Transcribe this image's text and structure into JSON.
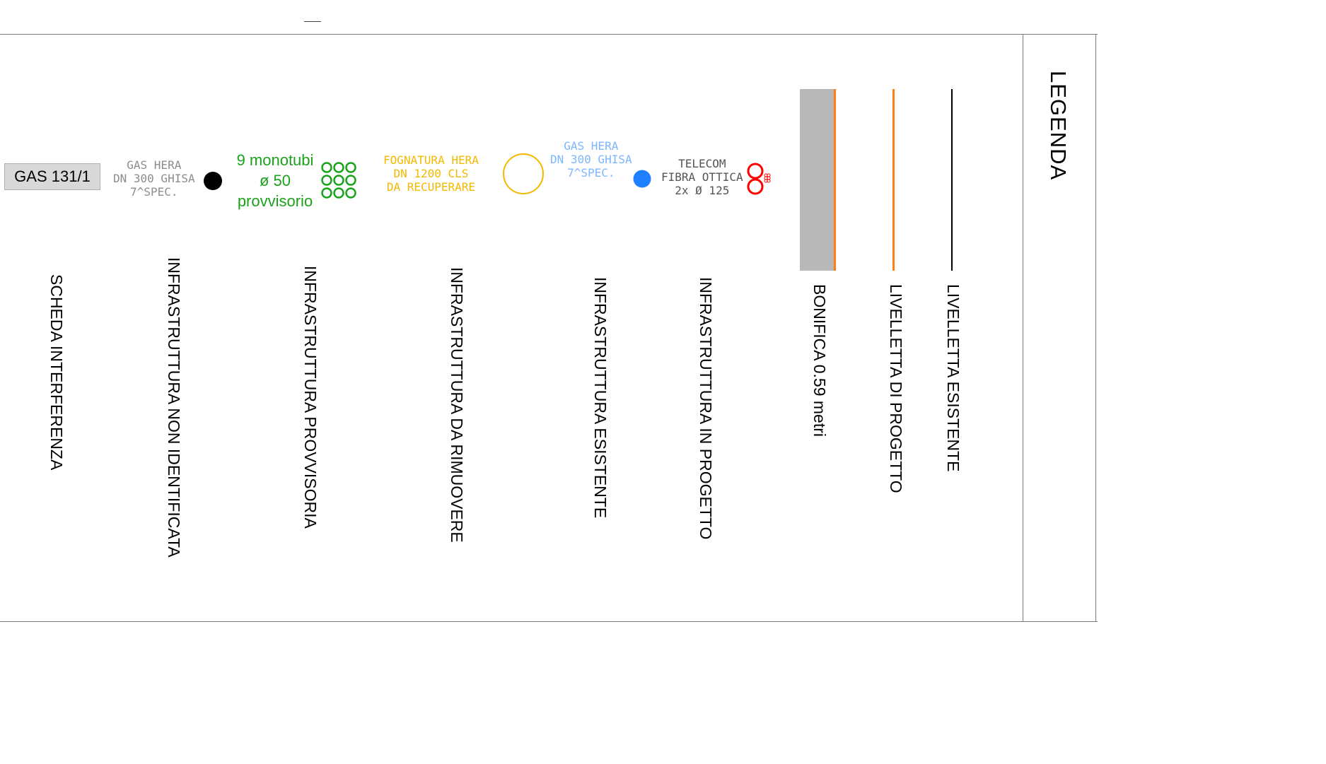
{
  "legend": {
    "title": "LEGENDA",
    "items": [
      {
        "label": "LIVELLETTA  ESISTENTE",
        "color": "#000000"
      },
      {
        "label": "LIVELLETTA  DI PROGETTO",
        "color": "#ff7f0e"
      },
      {
        "label": "BONIFICA 0.59 metri",
        "fill": "#b8b8b8",
        "edge": "#ff7f0e"
      },
      {
        "label": "INFRASTRUTTURA IN PROGETTO",
        "color": "#ff0000"
      },
      {
        "label": "INFRASTRUTTURA ESISTENTE",
        "color": "#1e7fff"
      },
      {
        "label": "INFRASTRUTTURA DA RIMUOVERE",
        "color": "#f5b800"
      },
      {
        "label": "INFRASTRUTTURA PROVVISORIA",
        "color": "#1aa31a"
      },
      {
        "label": "INFRASTRUTTURA NON IDENTIFICATA",
        "color": "#000000"
      },
      {
        "label": "SCHEDA INTERFERENZA"
      }
    ]
  },
  "samples": {
    "telecom": [
      "TELECOM",
      "FIBRA  OTTICA",
      "2x  Ø  125"
    ],
    "gas_existing": [
      "GAS  HERA",
      "DN  300  GHISA",
      "7^SPEC."
    ],
    "fognatura": [
      "FOGNATURA  HERA",
      "DN  1200  CLS",
      "DA  RECUPERARE"
    ],
    "provvisoria": [
      "9 monotubi",
      "ø 50",
      "provvisorio"
    ],
    "gas_unknown": [
      "GAS  HERA",
      "DN  300  GHISA",
      "7^SPEC."
    ],
    "scheda_box": "GAS 131/1"
  }
}
